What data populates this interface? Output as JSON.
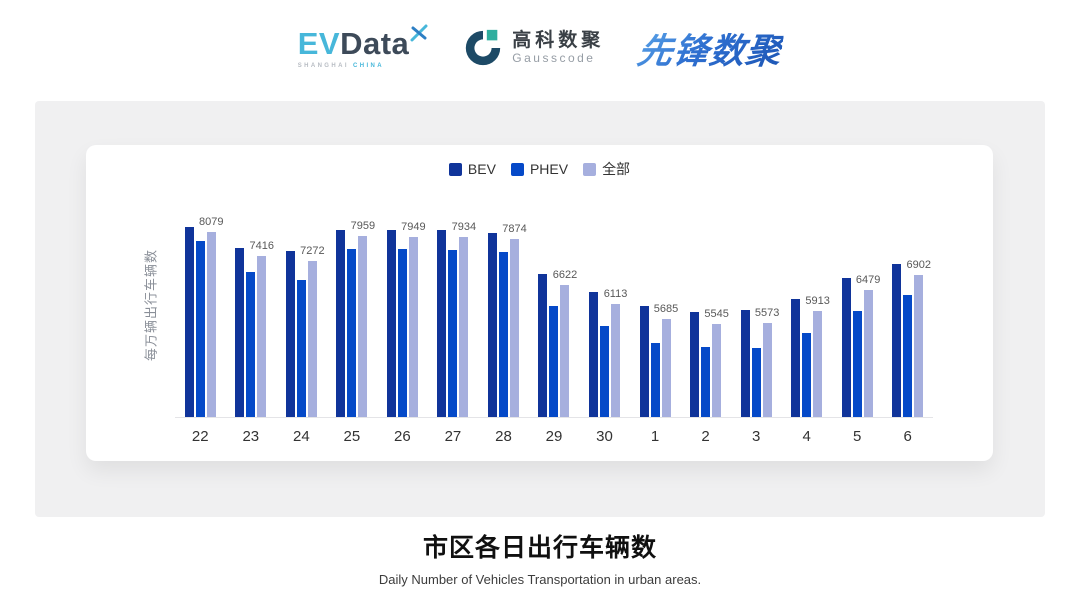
{
  "header": {
    "evdata": {
      "part1": "EV",
      "part2": "Data",
      "tagline_left": "SHANGHAI",
      "tagline_right": "CHINA"
    },
    "gausscode": {
      "name_cn": "高科数聚",
      "name_en": "Gausscode"
    },
    "pioneer": {
      "name": "先锋数聚"
    }
  },
  "chart_data": {
    "type": "bar",
    "title": "市区各日出行车辆数",
    "subtitle": "Daily Number of Vehicles Transportation in urban areas.",
    "ylabel": "每万辆出行车辆数",
    "xlabel": "",
    "categories": [
      "22",
      "23",
      "24",
      "25",
      "26",
      "27",
      "28",
      "29",
      "30",
      "1",
      "2",
      "3",
      "4",
      "5",
      "6"
    ],
    "series": [
      {
        "name": "BEV",
        "color": "#10349A",
        "show_labels": false,
        "values": [
          8220,
          7640,
          7560,
          8130,
          8130,
          8130,
          8050,
          6910,
          6440,
          6040,
          5870,
          5930,
          6230,
          6800,
          7210
        ]
      },
      {
        "name": "PHEV",
        "color": "#0549C8",
        "show_labels": false,
        "values": [
          7840,
          6990,
          6770,
          7620,
          7620,
          7590,
          7530,
          6040,
          5490,
          5030,
          4920,
          4890,
          5300,
          5900,
          6360
        ]
      },
      {
        "name": "全部",
        "color": "#A6AFDE",
        "show_labels": true,
        "values": [
          8079,
          7416,
          7272,
          7959,
          7949,
          7934,
          7874,
          6622,
          6113,
          5685,
          5545,
          5573,
          5913,
          6479,
          6902
        ]
      }
    ],
    "ylim": [
      3000,
      9200
    ],
    "grid": false,
    "legend_position": "top"
  },
  "caption": {
    "title": "市区各日出行车辆数",
    "subtitle": "Daily Number of Vehicles Transportation in urban areas."
  }
}
